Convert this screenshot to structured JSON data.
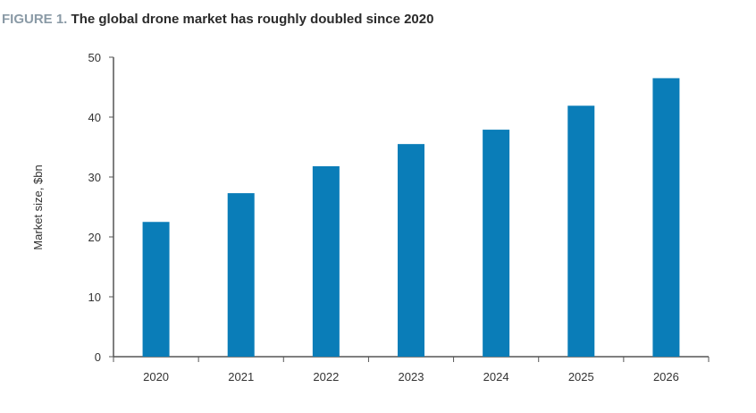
{
  "title": {
    "figure_label": "FIGURE 1.",
    "text": "The global drone market has roughly doubled since 2020"
  },
  "chart_data": {
    "type": "bar",
    "title": "The global drone market has roughly doubled since 2020",
    "xlabel": "",
    "ylabel": "Market size, $bn",
    "categories": [
      "2020",
      "2021",
      "2022",
      "2023",
      "2024",
      "2025",
      "2026"
    ],
    "values": [
      22.5,
      27.3,
      31.8,
      35.5,
      37.9,
      41.9,
      46.5
    ],
    "ylim": [
      0,
      50
    ],
    "yticks": [
      0,
      10,
      20,
      30,
      40,
      50
    ],
    "grid": false,
    "legend": "none",
    "bar_color": "#0a7db8"
  }
}
